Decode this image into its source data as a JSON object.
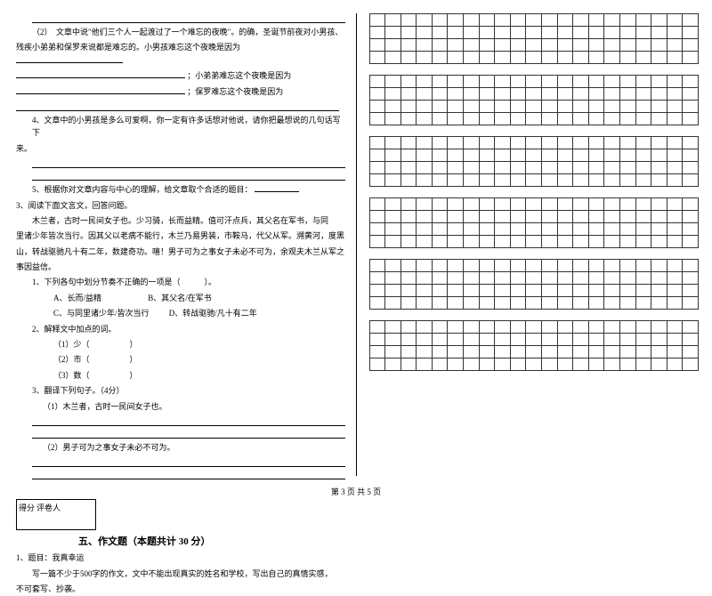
{
  "leftCol": {
    "blankLine1": " ",
    "q2_1": "（2）　文章中说\"他们三个人一起渡过了一个难忘的夜晚\"。的确，圣诞节前夜对小男孩、",
    "q2_2": "残疾小弟弟和保罗来说都是难忘的。小男孩难忘这个夜晚是因为",
    "q2_3": "；小弟弟难忘这个夜晚是因为",
    "q2_4": "；保罗难忘这个夜晚是因为",
    "q4_1": "4、文章中的小男孩是多么可爱啊，你一定有许多话想对他说，请你把最想说的几句话写下",
    "q4_2": "来。",
    "q5": "5、根据你对文章内容与中心的理解，给文章取个合适的题目：",
    "q3title": "3、阅读下面文言文，回答问题。",
    "passage1": "木兰者，古时一民间女子也。少习骑，长而益精。值可汗点兵，其父名在军书，与同",
    "passage2": "里诸少年皆次当行。因其父以老病不能行，木兰乃易男装，市鞍马，代父从军。溯黄河，度黑",
    "passage3": "山，转战驱驰凡十有二年，数建奇功。嘻！男子可为之事女子未必不可为，余观夫木兰从军之",
    "passage4": "事因益信。",
    "sub1": "1、下列各句中划分节奏不正确的一项是（　　　）。",
    "optA": "A、长而/益精",
    "optB": "B、其父名/在军书",
    "optC": "C、与同里诸少年/皆次当行",
    "optD": "D、转战驱驰/凡十有二年",
    "sub2": "2、解释文中加点的词。",
    "sub2_1": "（1）少（　　　　　）",
    "sub2_2": "（2）市（　　　　　）",
    "sub2_3": "（3）数（　　　　　）",
    "sub3": "3、翻译下列句子。（4分）",
    "sub3_1": "（1）木兰者，古时一民间女子也。",
    "sub3_2": "（2）男子可为之事女子未必不可为。",
    "scoreLabel1": "得分",
    "scoreLabel2": "评卷人",
    "section5": "五、作文题（本题共计 30 分）",
    "essay1": "1、题目：我真幸运",
    "essay2": "写一篇不少于500字的作文，文中不能出现真实的姓名和学校，写出自己的真情实感，",
    "essay3": "不可套写、抄袭。"
  },
  "footer": "第 3 页 共 5 页",
  "gridConfig": {
    "blocks": 6,
    "rows": 4,
    "cols": 21
  }
}
